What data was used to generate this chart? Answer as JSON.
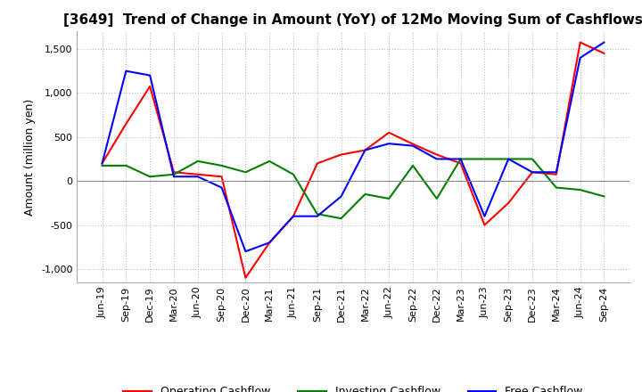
{
  "title": "[3649]  Trend of Change in Amount (YoY) of 12Mo Moving Sum of Cashflows",
  "ylabel": "Amount (million yen)",
  "title_fontsize": 11,
  "label_fontsize": 9,
  "tick_fontsize": 8,
  "ylim": [
    -1150,
    1700
  ],
  "yticks": [
    -1000,
    -500,
    0,
    500,
    1000,
    1500
  ],
  "background_color": "#ffffff",
  "grid_color": "#bbbbbb",
  "x_labels": [
    "Jun-19",
    "Sep-19",
    "Dec-19",
    "Mar-20",
    "Jun-20",
    "Sep-20",
    "Dec-20",
    "Mar-21",
    "Jun-21",
    "Sep-21",
    "Dec-21",
    "Mar-22",
    "Jun-22",
    "Sep-22",
    "Dec-22",
    "Mar-23",
    "Jun-23",
    "Sep-23",
    "Dec-23",
    "Mar-24",
    "Jun-24",
    "Sep-24"
  ],
  "operating": [
    200,
    650,
    1075,
    100,
    75,
    50,
    -1100,
    -700,
    -400,
    200,
    300,
    350,
    550,
    420,
    300,
    200,
    -500,
    -250,
    100,
    75,
    1575,
    1450
  ],
  "investing": [
    175,
    175,
    50,
    75,
    225,
    175,
    100,
    225,
    75,
    -375,
    -425,
    -150,
    -200,
    175,
    -200,
    250,
    250,
    250,
    250,
    -75,
    -100,
    -175
  ],
  "free": [
    200,
    1250,
    1200,
    50,
    50,
    -75,
    -800,
    -700,
    -400,
    -400,
    -175,
    350,
    425,
    400,
    250,
    250,
    -400,
    250,
    100,
    100,
    1400,
    1575
  ],
  "operating_color": "#ff0000",
  "investing_color": "#008000",
  "free_color": "#0000ff",
  "line_width": 1.5
}
